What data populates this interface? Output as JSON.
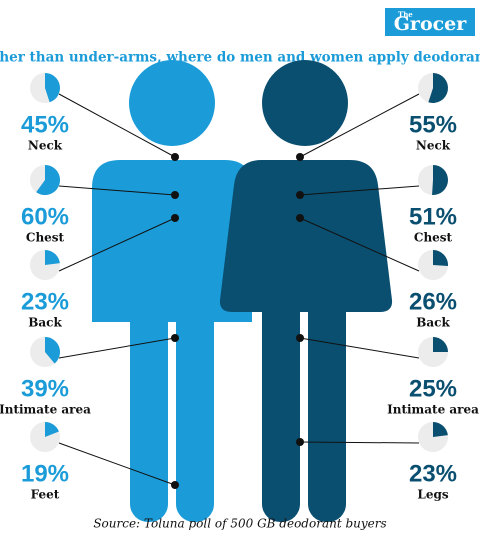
{
  "brand": {
    "small": "The",
    "large": "Grocer"
  },
  "chart_data": {
    "type": "pie",
    "title": "Other than under-arms, where do men and women apply deodorant?",
    "source": "Source: Toluna poll of 500 GB deodorant buyers",
    "series": [
      {
        "color": "#1b9cd8",
        "categories": [
          "Neck",
          "Chest",
          "Back",
          "Intimate area",
          "Feet"
        ],
        "values": [
          45,
          60,
          23,
          39,
          19
        ],
        "value_labels": [
          "45%",
          "60%",
          "23%",
          "39%",
          "19%"
        ]
      },
      {
        "color": "#0a4f70",
        "categories": [
          "Neck",
          "Chest",
          "Back",
          "Intimate area",
          "Legs"
        ],
        "values": [
          55,
          51,
          26,
          25,
          23
        ],
        "value_labels": [
          "55%",
          "51%",
          "26%",
          "25%",
          "23%"
        ]
      }
    ]
  }
}
